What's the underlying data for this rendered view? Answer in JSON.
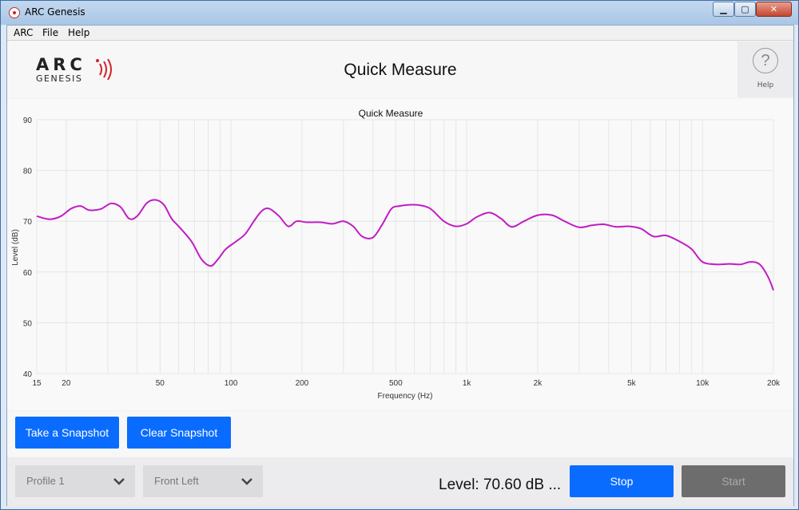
{
  "window": {
    "title": "ARC Genesis",
    "controls": {
      "minimize": "▁",
      "maximize": "▢",
      "close": "✕"
    }
  },
  "menu": [
    "ARC",
    "File",
    "Help"
  ],
  "header": {
    "logo_top": "ARC",
    "logo_bottom": "GENESIS",
    "page_title": "Quick Measure",
    "help_icon": "?",
    "help_label": "Help"
  },
  "colors": {
    "accent_blue": "#0a6cff",
    "curve": "#c11cc4",
    "disabled_button": "#6d6d6d"
  },
  "chart_data": {
    "type": "line",
    "title": "Quick Measure",
    "xlabel": "Frequency (Hz)",
    "ylabel": "Level (dB)",
    "x_scale": "log",
    "xlim": [
      15,
      20000
    ],
    "ylim": [
      40,
      90
    ],
    "grid": true,
    "x_ticks": [
      15,
      20,
      50,
      100,
      200,
      500,
      1000,
      2000,
      5000,
      10000,
      20000
    ],
    "x_tick_labels": [
      "15",
      "20",
      "50",
      "100",
      "200",
      "500",
      "1k",
      "2k",
      "5k",
      "10k",
      "20k"
    ],
    "x_grid": [
      15,
      20,
      30,
      40,
      50,
      60,
      70,
      80,
      90,
      100,
      200,
      300,
      400,
      500,
      600,
      700,
      800,
      900,
      1000,
      2000,
      3000,
      4000,
      5000,
      6000,
      7000,
      8000,
      9000,
      10000,
      20000
    ],
    "y_ticks": [
      40,
      50,
      60,
      70,
      80,
      90
    ],
    "series": [
      {
        "color": "#c11cc4",
        "x": [
          15,
          17,
          19,
          21,
          23,
          25,
          28,
          31,
          34,
          37,
          40,
          44,
          48,
          52,
          56,
          60,
          68,
          75,
          82,
          88,
          95,
          105,
          115,
          125,
          135,
          145,
          160,
          175,
          190,
          210,
          240,
          270,
          300,
          330,
          360,
          400,
          440,
          480,
          520,
          560,
          620,
          700,
          800,
          900,
          1000,
          1100,
          1250,
          1400,
          1550,
          1750,
          2000,
          2300,
          2600,
          3000,
          3400,
          3800,
          4300,
          4900,
          5500,
          6200,
          7000,
          8000,
          9000,
          10000,
          11500,
          13000,
          14500,
          16000,
          17500,
          19000,
          20000
        ],
        "y": [
          71.0,
          70.4,
          71.0,
          72.5,
          73.0,
          72.2,
          72.4,
          73.5,
          72.8,
          70.5,
          71.0,
          73.6,
          74.2,
          73.2,
          70.5,
          69.0,
          66.0,
          62.5,
          61.2,
          62.5,
          64.5,
          66.0,
          67.5,
          70.0,
          72.0,
          72.5,
          71.0,
          69.0,
          70.0,
          69.8,
          69.8,
          69.5,
          70.0,
          69.0,
          67.0,
          66.8,
          69.5,
          72.5,
          73.0,
          73.2,
          73.2,
          72.5,
          70.0,
          69.0,
          69.5,
          70.8,
          71.7,
          70.5,
          68.9,
          70.0,
          71.2,
          71.2,
          70.0,
          68.8,
          69.2,
          69.4,
          68.9,
          69.0,
          68.5,
          67.0,
          67.2,
          66.0,
          64.5,
          62.0,
          61.5,
          61.6,
          61.5,
          62.0,
          61.5,
          59.0,
          56.4
        ]
      }
    ]
  },
  "buttons": {
    "snapshot": "Take a Snapshot",
    "clear_snapshot": "Clear Snapshot",
    "stop": "Stop",
    "start": "Start"
  },
  "profile_select": {
    "value": "Profile 1"
  },
  "channel_select": {
    "value": "Front Left"
  },
  "level_readout": "Level: 70.60 dB ..."
}
